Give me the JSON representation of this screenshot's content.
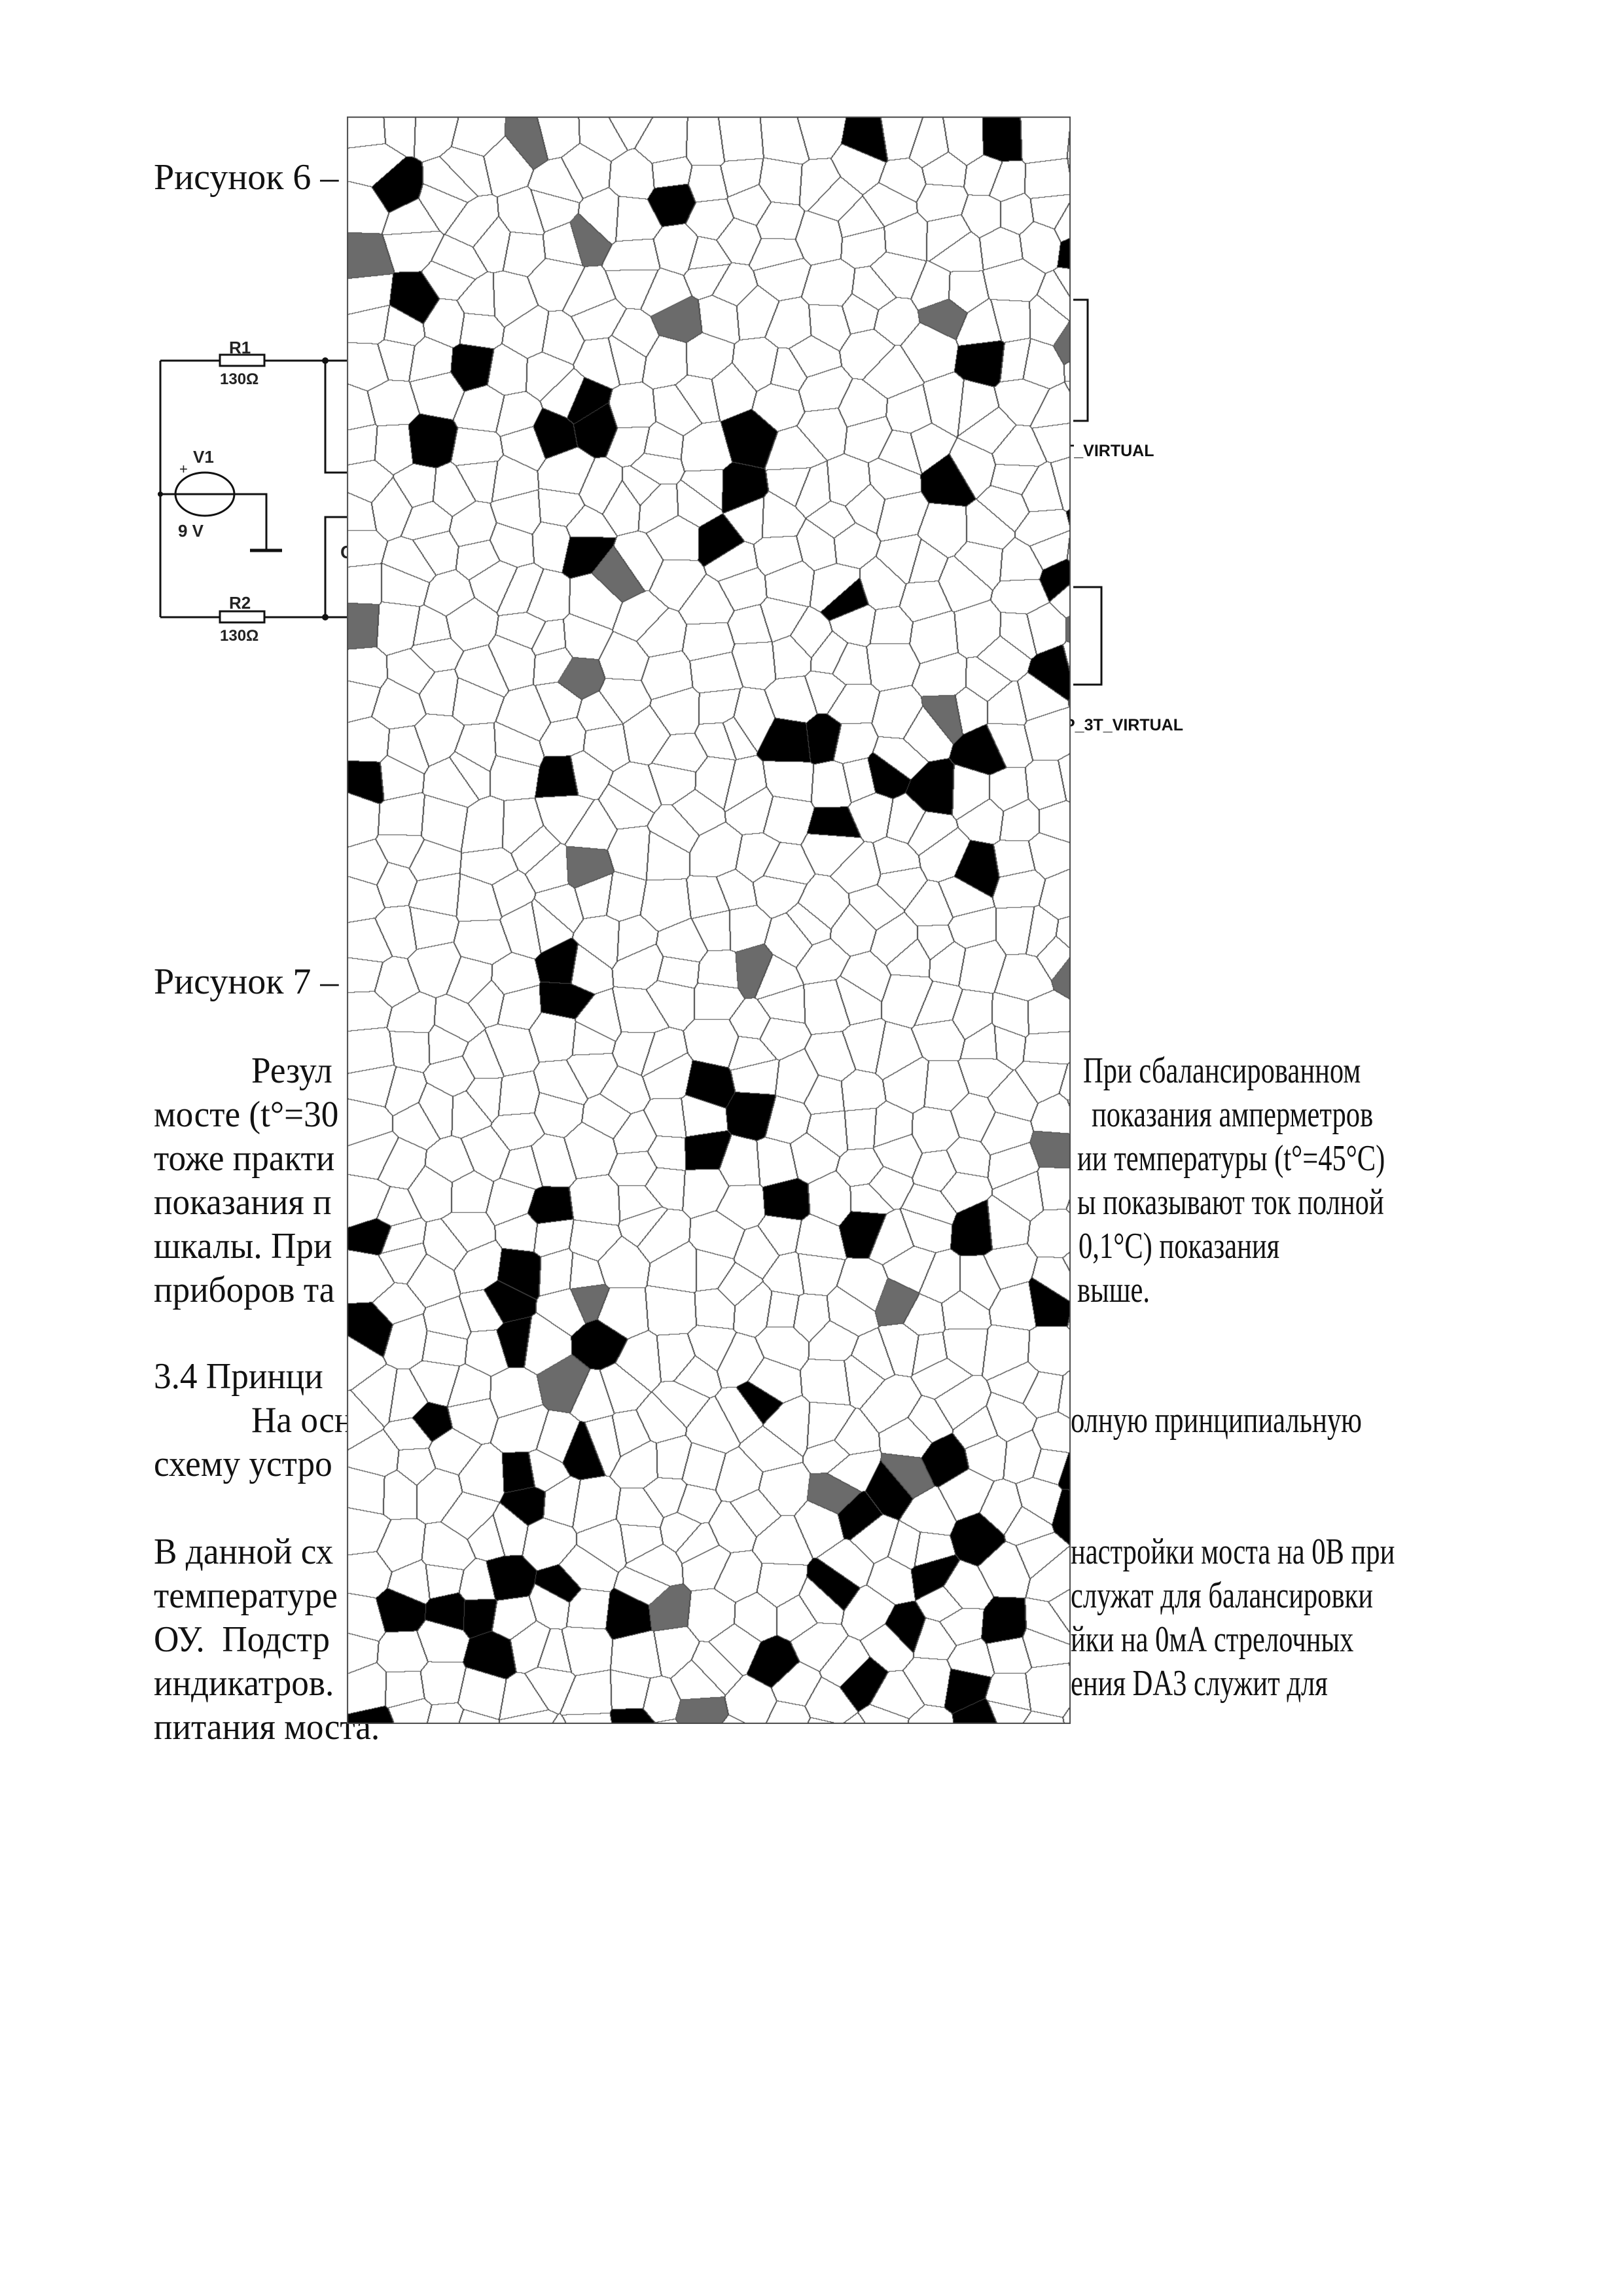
{
  "captions": {
    "fig6": "Рисунок 6 –",
    "fig7": "Рисунок 7 –"
  },
  "circuit": {
    "r1": "R1",
    "r1_value": "130Ω",
    "r2": "R2",
    "r2_value": "130Ω",
    "v1": "V1",
    "v1_plus": "+",
    "v1_value": "9 V",
    "partial_label": "C",
    "probe1": "T_VIRTUAL",
    "probe2": "P_3T_VIRTUAL"
  },
  "left_fragments": [
    "Резул",
    "мосте (t°=30",
    "тоже практи",
    "показания п",
    "шкалы. При",
    "приборов та",
    "3.4 Принци",
    "На осн",
    "схему устро",
    "В данной сх",
    "температуре",
    "ОУ.  Подстр",
    "индикатров.",
    "питания моста."
  ],
  "right_fragments": [
    "При сбалансированном",
    "показания амперметров",
    "ии температуры (t°=45°C)",
    "ы показывают ток полной",
    "0,1°C) показания",
    "выше.",
    "олную принципиальную",
    "настройки моста на 0В при",
    "служат для балансировки",
    "йки на 0мА стрелочных",
    "ения DA3 служит для"
  ],
  "mosaic": {
    "fill": "#ffffff",
    "edge": "#4a4a4a",
    "dark": "#000000",
    "gray": "#6b6b6b"
  }
}
